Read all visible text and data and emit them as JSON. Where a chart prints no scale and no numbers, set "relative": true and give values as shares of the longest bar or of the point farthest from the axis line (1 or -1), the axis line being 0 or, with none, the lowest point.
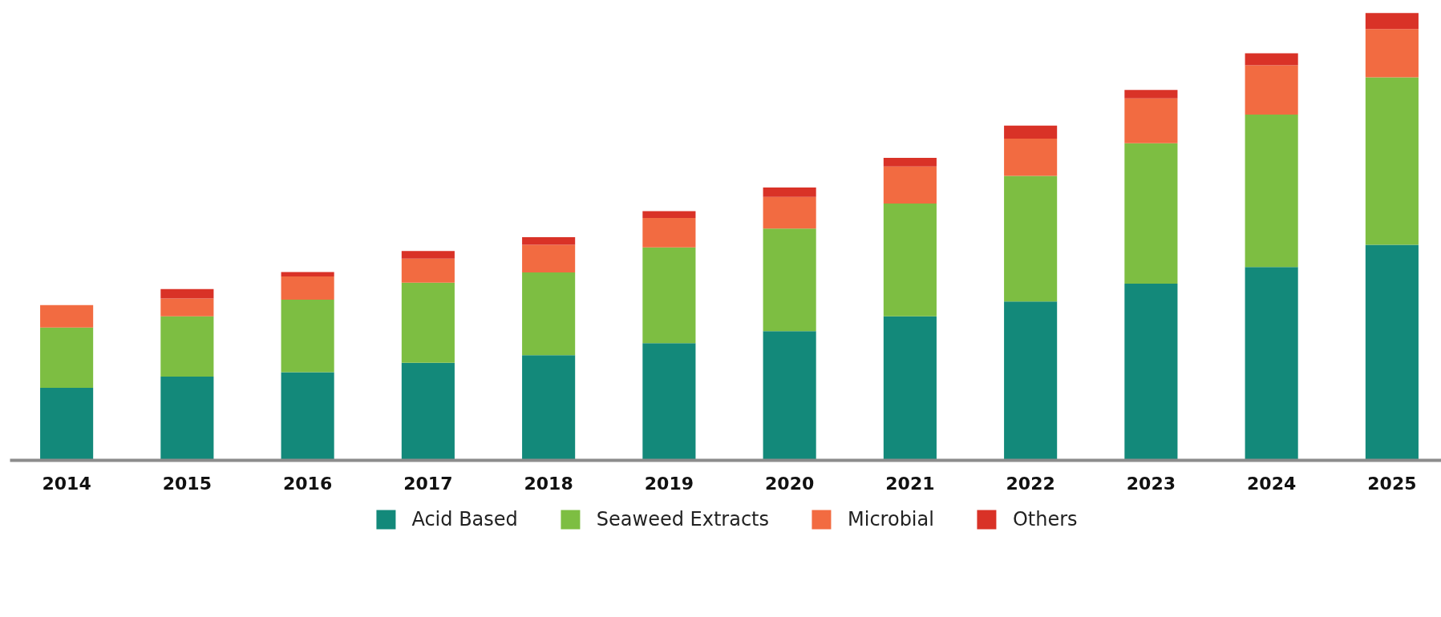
{
  "chart_data": {
    "type": "bar",
    "stacked": true,
    "relative": true,
    "legend": "bottom",
    "grid": false,
    "categories": [
      "2014",
      "2015",
      "2016",
      "2017",
      "2018",
      "2019",
      "2020",
      "2021",
      "2022",
      "2023",
      "2024",
      "2025"
    ],
    "series": [
      {
        "name": "Acid Based",
        "color": "#13897a",
        "values": [
          0.162,
          0.187,
          0.197,
          0.218,
          0.235,
          0.262,
          0.289,
          0.322,
          0.355,
          0.395,
          0.432,
          0.482
        ]
      },
      {
        "name": "Seaweed Extracts",
        "color": "#7dbe42",
        "values": [
          0.135,
          0.135,
          0.162,
          0.179,
          0.185,
          0.214,
          0.229,
          0.252,
          0.281,
          0.314,
          0.341,
          0.374
        ]
      },
      {
        "name": "Microbial",
        "color": "#f26b41",
        "values": [
          0.05,
          0.04,
          0.052,
          0.054,
          0.062,
          0.066,
          0.071,
          0.083,
          0.083,
          0.1,
          0.11,
          0.108
        ]
      },
      {
        "name": "Others",
        "color": "#d93227",
        "values": [
          0,
          0.021,
          0.01,
          0.017,
          0.017,
          0.015,
          0.021,
          0.019,
          0.029,
          0.019,
          0.027,
          0.036
        ]
      }
    ]
  }
}
